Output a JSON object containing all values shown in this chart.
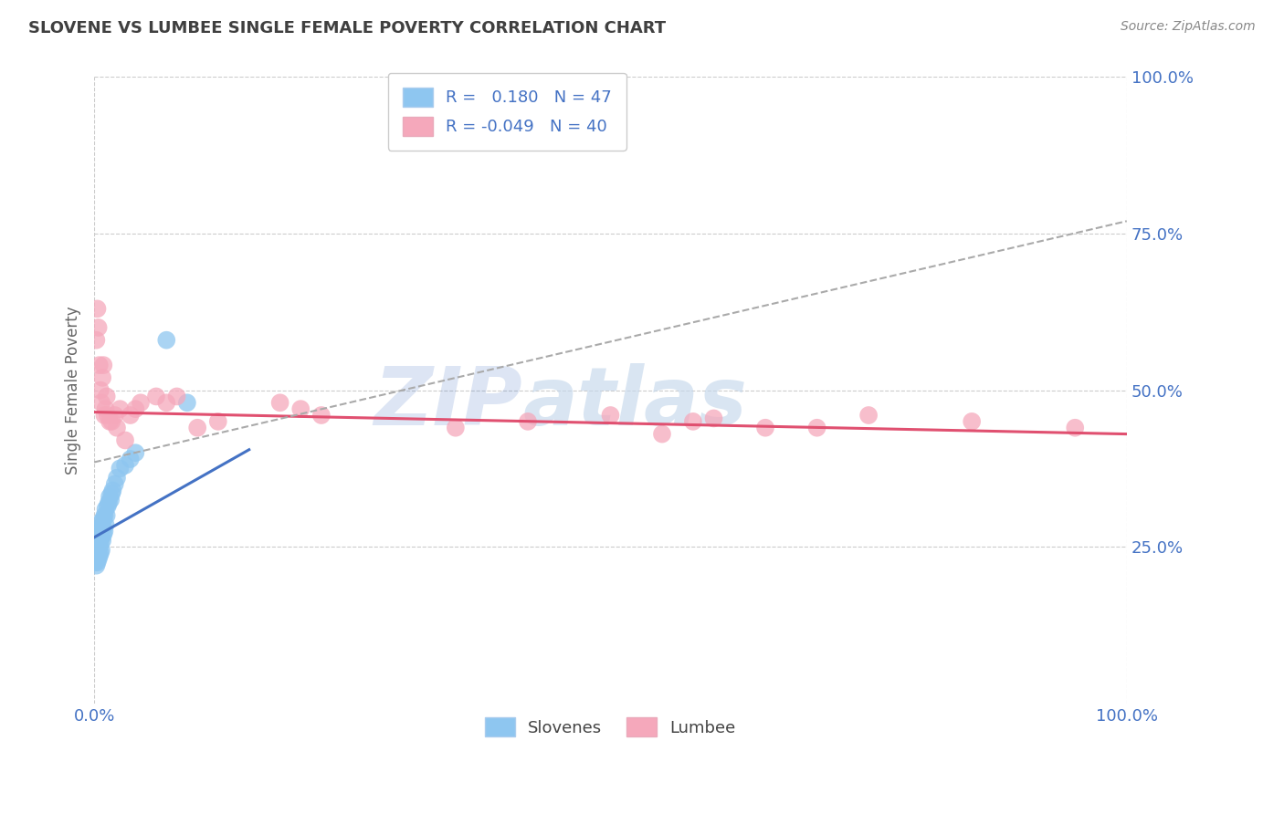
{
  "title": "SLOVENE VS LUMBEE SINGLE FEMALE POVERTY CORRELATION CHART",
  "source": "Source: ZipAtlas.com",
  "ylabel": "Single Female Poverty",
  "legend_slovene": "Slovenes",
  "legend_lumbee": "Lumbee",
  "r_slovene": 0.18,
  "n_slovene": 47,
  "r_lumbee": -0.049,
  "n_lumbee": 40,
  "slovene_color": "#8EC6F0",
  "lumbee_color": "#F5A8BB",
  "slovene_line_color": "#4472C4",
  "lumbee_line_color": "#E05070",
  "trend_color": "#AAAAAA",
  "background_color": "#FFFFFF",
  "grid_color": "#CCCCCC",
  "title_color": "#404040",
  "watermark_color": "#C5D8EC",
  "axis_label_color": "#4472C4",
  "slovene_x": [
    0.001,
    0.001,
    0.001,
    0.002,
    0.002,
    0.002,
    0.002,
    0.002,
    0.003,
    0.003,
    0.003,
    0.003,
    0.004,
    0.004,
    0.004,
    0.005,
    0.005,
    0.005,
    0.006,
    0.006,
    0.006,
    0.007,
    0.007,
    0.007,
    0.008,
    0.008,
    0.009,
    0.009,
    0.01,
    0.01,
    0.011,
    0.011,
    0.012,
    0.013,
    0.014,
    0.015,
    0.016,
    0.017,
    0.018,
    0.02,
    0.022,
    0.025,
    0.03,
    0.035,
    0.04,
    0.07,
    0.09
  ],
  "slovene_y": [
    0.225,
    0.23,
    0.24,
    0.22,
    0.235,
    0.245,
    0.255,
    0.265,
    0.225,
    0.235,
    0.248,
    0.26,
    0.23,
    0.245,
    0.265,
    0.235,
    0.25,
    0.27,
    0.24,
    0.255,
    0.28,
    0.245,
    0.265,
    0.29,
    0.26,
    0.285,
    0.27,
    0.295,
    0.275,
    0.3,
    0.285,
    0.31,
    0.3,
    0.315,
    0.32,
    0.33,
    0.325,
    0.335,
    0.34,
    0.35,
    0.36,
    0.375,
    0.38,
    0.39,
    0.4,
    0.58,
    0.48
  ],
  "lumbee_x": [
    0.002,
    0.003,
    0.004,
    0.005,
    0.006,
    0.007,
    0.008,
    0.009,
    0.01,
    0.011,
    0.012,
    0.013,
    0.015,
    0.017,
    0.02,
    0.022,
    0.025,
    0.03,
    0.035,
    0.04,
    0.045,
    0.06,
    0.07,
    0.08,
    0.1,
    0.12,
    0.18,
    0.2,
    0.22,
    0.35,
    0.42,
    0.5,
    0.55,
    0.58,
    0.6,
    0.65,
    0.7,
    0.75,
    0.85,
    0.95
  ],
  "lumbee_y": [
    0.58,
    0.63,
    0.6,
    0.54,
    0.5,
    0.48,
    0.52,
    0.54,
    0.46,
    0.47,
    0.49,
    0.46,
    0.45,
    0.45,
    0.46,
    0.44,
    0.47,
    0.42,
    0.46,
    0.47,
    0.48,
    0.49,
    0.48,
    0.49,
    0.44,
    0.45,
    0.48,
    0.47,
    0.46,
    0.44,
    0.45,
    0.46,
    0.43,
    0.45,
    0.455,
    0.44,
    0.44,
    0.46,
    0.45,
    0.44
  ],
  "slovene_line_x": [
    0.0,
    0.15
  ],
  "slovene_line_y": [
    0.265,
    0.405
  ],
  "lumbee_line_x": [
    0.0,
    1.0
  ],
  "lumbee_line_y": [
    0.465,
    0.43
  ],
  "trend_line_x": [
    0.0,
    1.0
  ],
  "trend_line_y": [
    0.385,
    0.77
  ],
  "xlim": [
    0.0,
    1.0
  ],
  "ylim": [
    0.0,
    1.0
  ],
  "yticks": [
    0.25,
    0.5,
    0.75,
    1.0
  ],
  "ytick_labels": [
    "25.0%",
    "50.0%",
    "75.0%",
    "100.0%"
  ],
  "xtick_labels": [
    "0.0%",
    "100.0%"
  ]
}
